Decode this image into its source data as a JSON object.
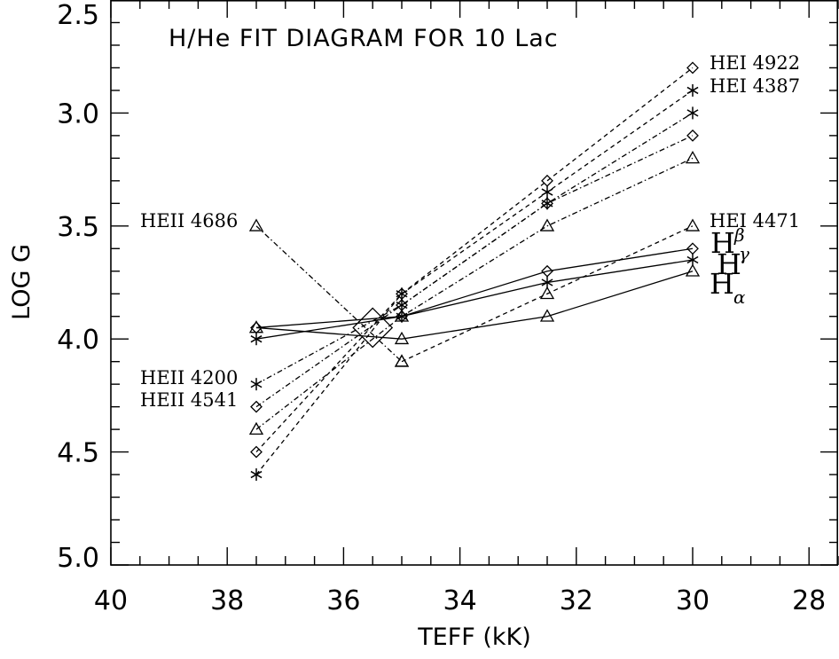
{
  "chart_data": {
    "type": "line",
    "title": "H/He FIT DIAGRAM FOR 10 Lac",
    "xlabel": "TEFF (kK)",
    "ylabel": "LOG G",
    "xlim": [
      40,
      27.5
    ],
    "ylim": [
      2.5,
      5.0
    ],
    "y_inverted": true,
    "x_reversed": true,
    "x_ticks": [
      40,
      38,
      36,
      34,
      32,
      30,
      28
    ],
    "x_tick_labels": [
      "40",
      "38",
      "36",
      "34",
      "32",
      "30",
      "28"
    ],
    "y_ticks": [
      2.5,
      3.0,
      3.5,
      4.0,
      4.5,
      5.0
    ],
    "y_tick_labels": [
      "2.5",
      "3.0",
      "3.5",
      "4.0",
      "4.5",
      "5.0"
    ],
    "grid": false,
    "series": [
      {
        "marker": "diamond",
        "linestyle": "dashed",
        "x": [
          37.5,
          35,
          32.5,
          30
        ],
        "y": [
          4.5,
          3.8,
          3.3,
          2.8
        ]
      },
      {
        "marker": "asterisk",
        "linestyle": "dashed",
        "x": [
          37.5,
          35,
          32.5,
          30
        ],
        "y": [
          4.6,
          3.8,
          3.35,
          2.9
        ]
      },
      {
        "marker": "asterisk",
        "linestyle": "dashdot",
        "x": [
          37.5,
          35,
          32.5,
          30
        ],
        "y": [
          4.2,
          3.85,
          3.4,
          3.0
        ]
      },
      {
        "marker": "diamond",
        "linestyle": "dashdot",
        "x": [
          37.5,
          35,
          32.5,
          30
        ],
        "y": [
          4.3,
          3.85,
          3.4,
          3.1
        ]
      },
      {
        "marker": "triangle",
        "linestyle": "dashdot",
        "x": [
          37.5,
          35,
          32.5,
          30
        ],
        "y": [
          4.4,
          3.9,
          3.5,
          3.2
        ]
      },
      {
        "marker": "triangle",
        "linestyle": "dashdot",
        "x": [
          37.5,
          35
        ],
        "y": [
          3.5,
          4.1
        ]
      },
      {
        "marker": "triangle",
        "linestyle": "dashed",
        "x": [
          35,
          32.5,
          30
        ],
        "y": [
          4.1,
          3.8,
          3.5
        ]
      },
      {
        "marker": "diamond",
        "linestyle": "solid",
        "x": [
          37.5,
          35,
          32.5,
          30
        ],
        "y": [
          3.95,
          3.9,
          3.7,
          3.6
        ]
      },
      {
        "marker": "asterisk",
        "linestyle": "solid",
        "x": [
          37.5,
          35,
          32.5,
          30
        ],
        "y": [
          4.0,
          3.9,
          3.75,
          3.65
        ]
      },
      {
        "marker": "triangle",
        "linestyle": "solid",
        "x": [
          37.5,
          35,
          32.5,
          30
        ],
        "y": [
          3.95,
          4.0,
          3.9,
          3.7
        ]
      }
    ],
    "fit_point": {
      "marker": "diamond-large",
      "x": 35.5,
      "y": 3.95
    },
    "labels": {
      "hei_4922": "HEI 4922",
      "hei_4387": "HEI 4387",
      "hei_4471": "HEI 4471",
      "heii_4686": "HEII 4686",
      "heii_4200": "HEII 4200",
      "heii_4541": "HEII 4541",
      "h_letter": "H",
      "beta": "β",
      "gamma": "γ",
      "alpha": "α"
    }
  }
}
